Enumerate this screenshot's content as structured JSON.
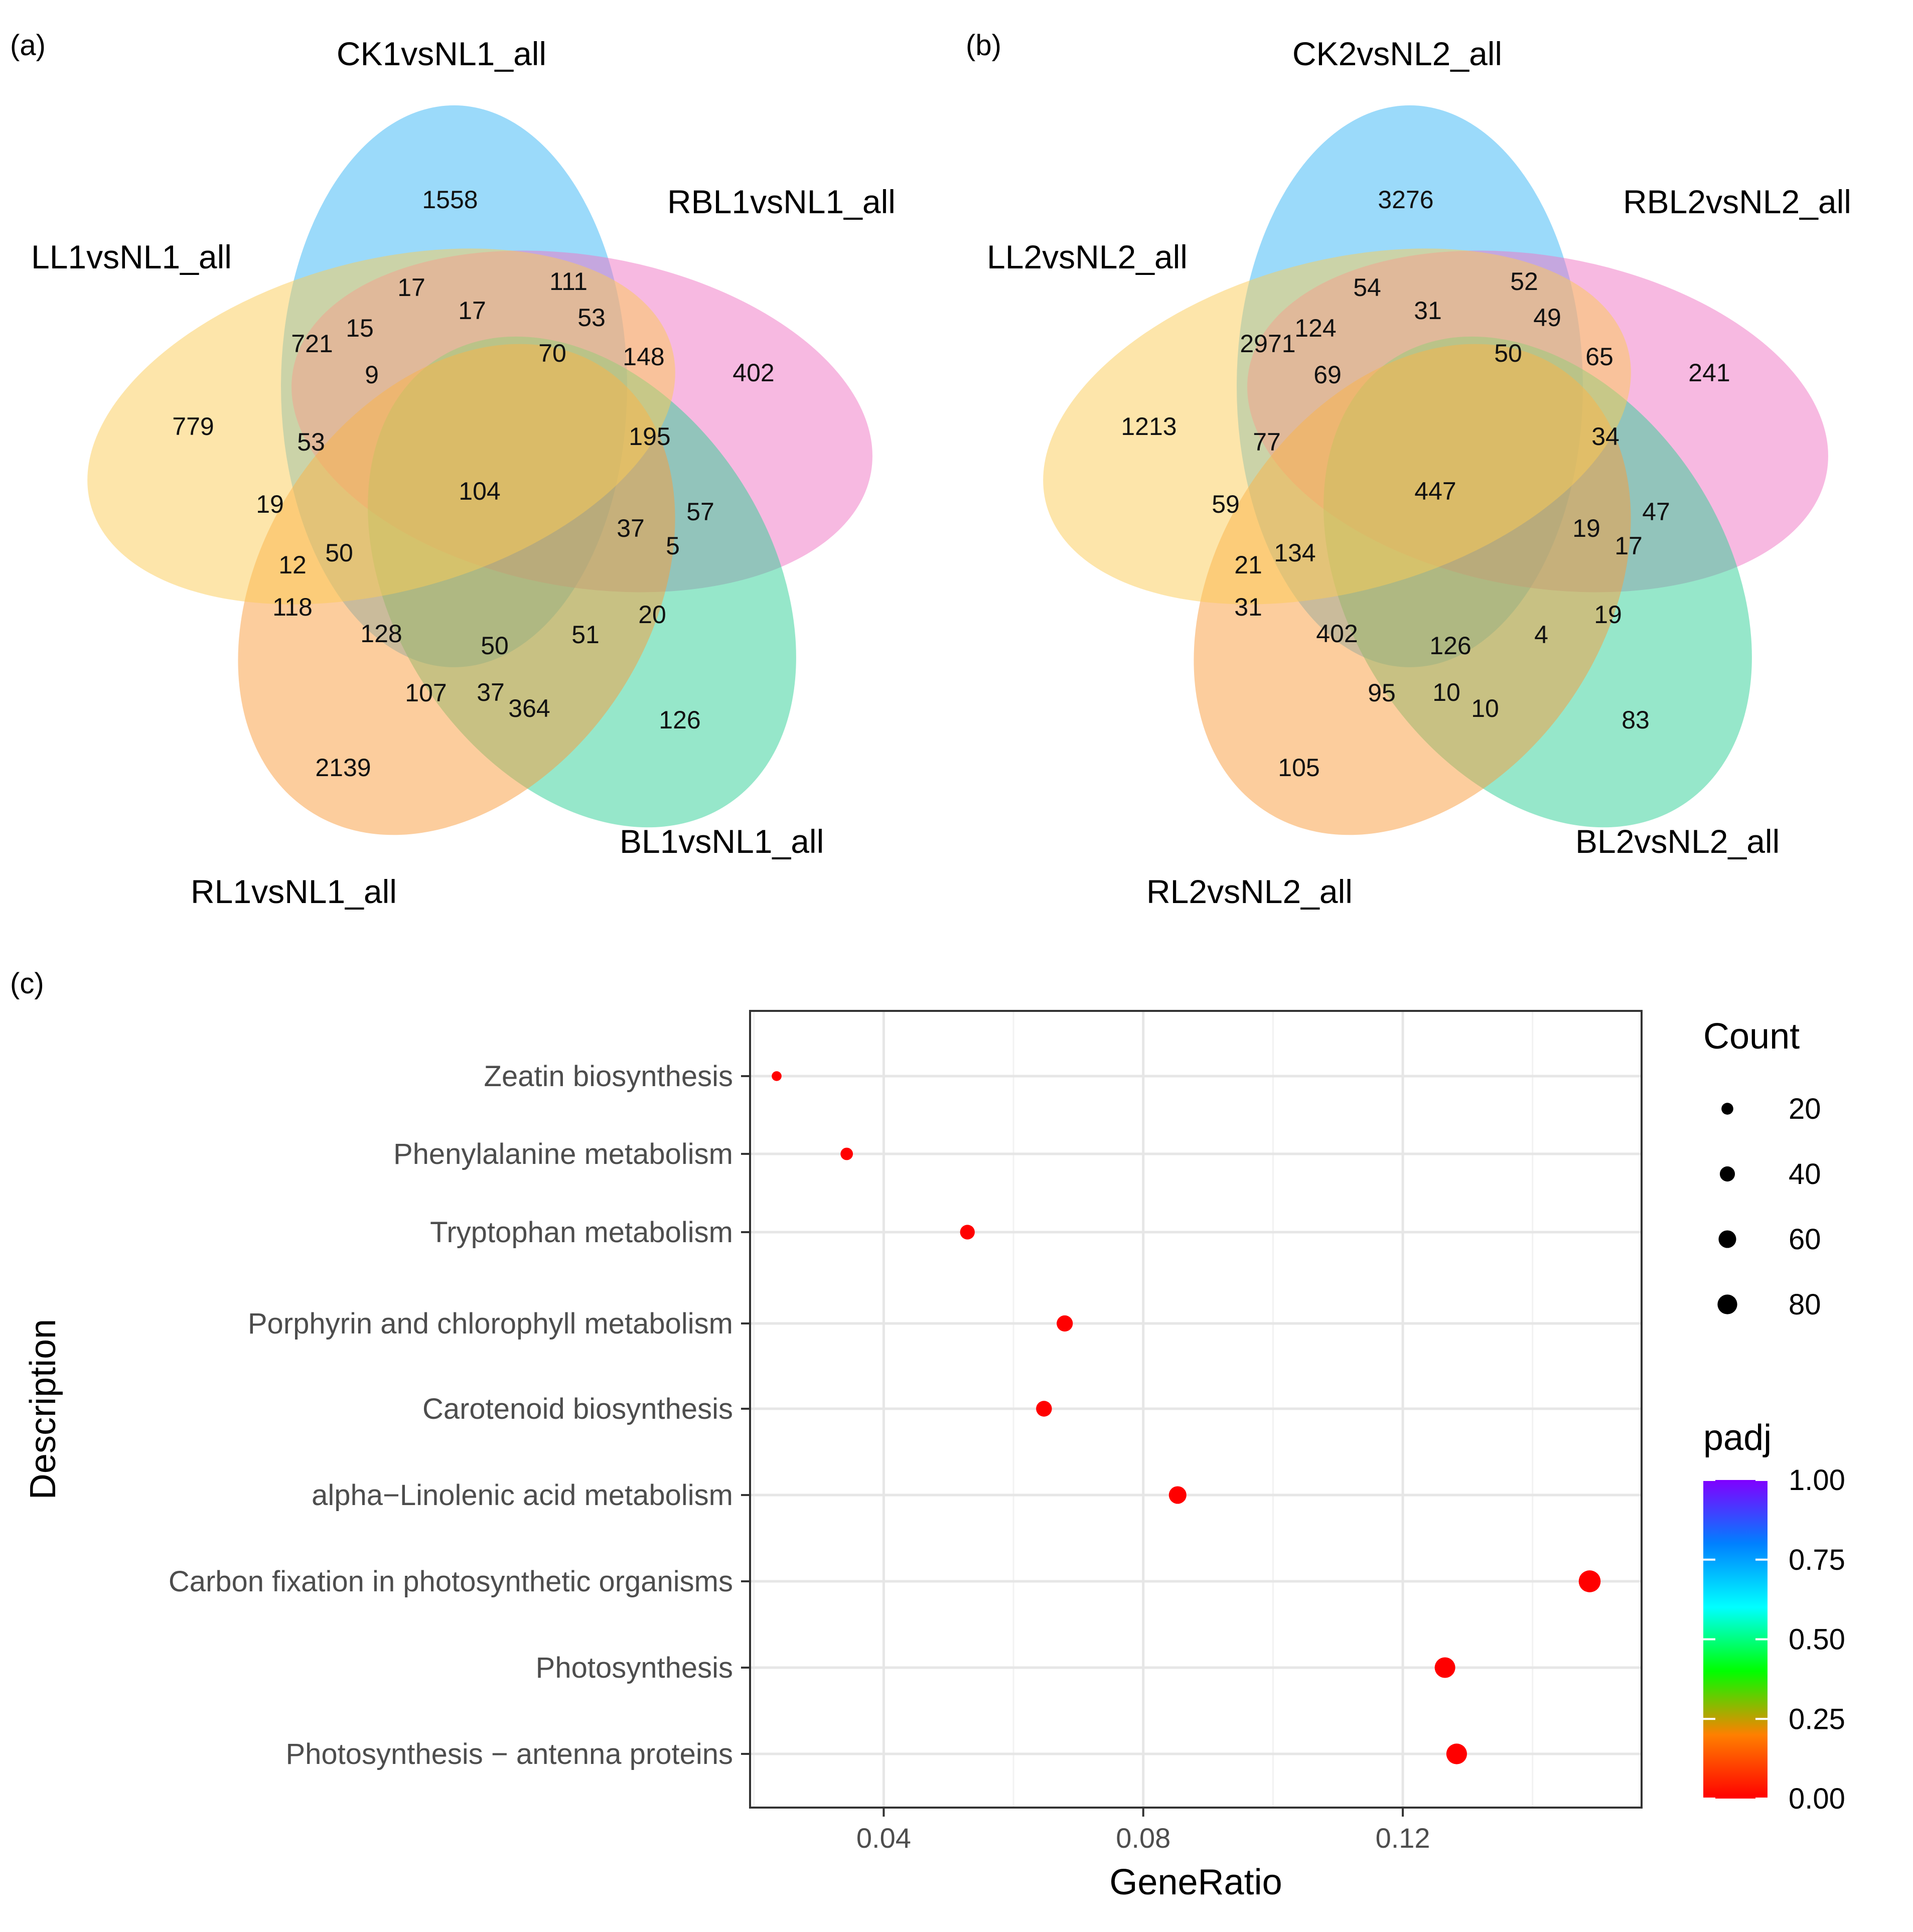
{
  "panel_labels": {
    "a": "(a)",
    "b": "(b)",
    "c": "(c)"
  },
  "chart_data": [
    {
      "type": "venn",
      "panel": "a",
      "sets": [
        {
          "name": "CK1vsNL1_all",
          "color": "#38B6F5"
        },
        {
          "name": "RBL1vsNL1_all",
          "color": "#F074C4"
        },
        {
          "name": "BL1vsNL1_all",
          "color": "#2ECF95"
        },
        {
          "name": "RL1vsNL1_all",
          "color": "#F99B3B"
        },
        {
          "name": "LL1vsNL1_all",
          "color": "#FBCB56"
        }
      ],
      "region_values": {
        "only_CK": 1558,
        "only_RBL": 402,
        "only_BL": 126,
        "only_RL": 2139,
        "only_LL": 779,
        "n1": 17,
        "n2": 111,
        "n3": 721,
        "n4": 15,
        "n5": 17,
        "n6": 53,
        "n7": 70,
        "n8": 148,
        "n9": 9,
        "n10": 195,
        "n11": 53,
        "n12": 104,
        "n13": 19,
        "n14": 37,
        "n15": 57,
        "n16": 5,
        "n17": 50,
        "n18": 12,
        "n19": 118,
        "n20": 20,
        "n21": 128,
        "n22": 50,
        "n23": 51,
        "n24": 107,
        "n25": 37,
        "n26": 364
      }
    },
    {
      "type": "venn",
      "panel": "b",
      "sets": [
        {
          "name": "CK2vsNL2_all",
          "color": "#38B6F5"
        },
        {
          "name": "RBL2vsNL2_all",
          "color": "#F074C4"
        },
        {
          "name": "BL2vsNL2_all",
          "color": "#2ECF95"
        },
        {
          "name": "RL2vsNL2_all",
          "color": "#F99B3B"
        },
        {
          "name": "LL2vsNL2_all",
          "color": "#FBCB56"
        }
      ],
      "region_values": {
        "only_CK": 3276,
        "only_RBL": 241,
        "only_BL": 83,
        "only_RL": 105,
        "only_LL": 1213,
        "n1": 54,
        "n2": 52,
        "n3": 2971,
        "n4": 124,
        "n5": 31,
        "n6": 49,
        "n7": 50,
        "n8": 65,
        "n9": 69,
        "n10": 34,
        "n11": 77,
        "n12": 447,
        "n13": 59,
        "n14": 19,
        "n15": 47,
        "n16": 17,
        "n17": 134,
        "n18": 21,
        "n19": 31,
        "n20": 19,
        "n21": 402,
        "n22": 126,
        "n23": 4,
        "n24": 95,
        "n25": 10,
        "n26": 10
      }
    },
    {
      "type": "scatter",
      "panel": "c",
      "xlabel": "GeneRatio",
      "ylabel": "Description",
      "xlim": [
        0.0194,
        0.1568
      ],
      "xticks": [
        0.04,
        0.08,
        0.12
      ],
      "xtick_labels": [
        "0.04",
        "0.08",
        "0.12"
      ],
      "categories": [
        "Zeatin biosynthesis",
        "Phenylalanine metabolism",
        "Tryptophan metabolism",
        "Porphyrin and chlorophyll metabolism",
        "Carotenoid biosynthesis",
        "alpha−Linolenic acid metabolism",
        "Carbon fixation in photosynthetic organisms",
        "Photosynthesis",
        "Photosynthesis − antenna proteins"
      ],
      "points": [
        {
          "description": "Zeatin biosynthesis",
          "gene_ratio": 0.0235,
          "count": 11,
          "padj": 0.0
        },
        {
          "description": "Phenylalanine metabolism",
          "gene_ratio": 0.0343,
          "count": 23,
          "padj": 0.0
        },
        {
          "description": "Tryptophan metabolism",
          "gene_ratio": 0.0529,
          "count": 37,
          "padj": 0.0
        },
        {
          "description": "Porphyrin and chlorophyll metabolism",
          "gene_ratio": 0.0679,
          "count": 48,
          "padj": 0.0
        },
        {
          "description": "Carotenoid biosynthesis",
          "gene_ratio": 0.0647,
          "count": 45,
          "padj": 0.0
        },
        {
          "description": "alpha−Linolenic acid metabolism",
          "gene_ratio": 0.0853,
          "count": 60,
          "padj": 0.0
        },
        {
          "description": "Carbon fixation in photosynthetic organisms",
          "gene_ratio": 0.1488,
          "count": 104,
          "padj": 0.0
        },
        {
          "description": "Photosynthesis",
          "gene_ratio": 0.1265,
          "count": 89,
          "padj": 0.0
        },
        {
          "description": "Photosynthesis − antenna proteins",
          "gene_ratio": 0.1283,
          "count": 90,
          "padj": 0.0
        }
      ],
      "size_legend": {
        "title": "Count",
        "values": [
          20,
          40,
          60,
          80
        ],
        "labels": [
          "20",
          "40",
          "60",
          "80"
        ]
      },
      "color_legend": {
        "title": "padj",
        "ticks": [
          0.0,
          0.25,
          0.5,
          0.75,
          1.0
        ],
        "labels": [
          "0.00",
          "0.25",
          "0.50",
          "0.75",
          "1.00"
        ],
        "colors": [
          "#FF0000",
          "#FF8000",
          "#00FF00",
          "#00FFFF",
          "#0080FF",
          "#8000FF"
        ]
      },
      "point_color": "#FF0000"
    }
  ]
}
